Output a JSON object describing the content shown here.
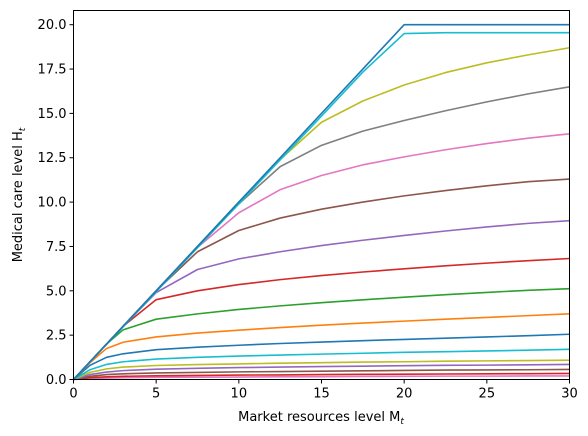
{
  "chart_data": {
    "type": "line",
    "title": "",
    "xlabel": "Market resources level M",
    "xlabel_sub": "t",
    "ylabel": "Medical care level H",
    "ylabel_sub": "t",
    "xlim": [
      0,
      30
    ],
    "ylim": [
      0,
      20.8
    ],
    "x_ticks": [
      0,
      5,
      10,
      15,
      20,
      25,
      30
    ],
    "x_tick_labels": [
      "0",
      "5",
      "10",
      "15",
      "20",
      "25",
      "30"
    ],
    "y_ticks": [
      0,
      2.5,
      5,
      7.5,
      10,
      12.5,
      15,
      17.5,
      20
    ],
    "y_tick_labels": [
      "0.0",
      "2.5",
      "5.0",
      "7.5",
      "10.0",
      "12.5",
      "15.0",
      "17.5",
      "20.0"
    ],
    "grid": false,
    "legend": "none",
    "x": [
      0,
      1,
      2,
      3,
      5,
      7.5,
      10,
      12.5,
      15,
      17.5,
      20,
      22.5,
      25,
      27.5,
      30
    ],
    "series": [
      {
        "color": "#e377c2",
        "values": [
          0,
          0.05,
          0.08,
          0.1,
          0.12,
          0.13,
          0.14,
          0.15,
          0.16,
          0.17,
          0.18,
          0.19,
          0.19,
          0.2,
          0.2
        ]
      },
      {
        "color": "#d62728",
        "values": [
          0,
          0.1,
          0.15,
          0.18,
          0.21,
          0.23,
          0.25,
          0.26,
          0.28,
          0.29,
          0.3,
          0.31,
          0.32,
          0.33,
          0.34
        ]
      },
      {
        "color": "#8c564b",
        "values": [
          0,
          0.18,
          0.28,
          0.32,
          0.37,
          0.4,
          0.43,
          0.45,
          0.47,
          0.49,
          0.51,
          0.53,
          0.54,
          0.55,
          0.57
        ]
      },
      {
        "color": "#9467bd",
        "values": [
          0,
          0.28,
          0.42,
          0.5,
          0.58,
          0.63,
          0.67,
          0.7,
          0.73,
          0.75,
          0.78,
          0.8,
          0.81,
          0.83,
          0.85
        ]
      },
      {
        "color": "#bcbd22",
        "values": [
          0,
          0.4,
          0.6,
          0.7,
          0.79,
          0.84,
          0.88,
          0.92,
          0.95,
          0.98,
          1.0,
          1.03,
          1.05,
          1.07,
          1.09
        ]
      },
      {
        "color": "#17becf",
        "values": [
          0,
          0.55,
          0.85,
          1.0,
          1.15,
          1.25,
          1.32,
          1.38,
          1.43,
          1.48,
          1.53,
          1.57,
          1.61,
          1.65,
          1.7
        ]
      },
      {
        "color": "#1f77b4",
        "values": [
          0,
          0.8,
          1.25,
          1.45,
          1.68,
          1.82,
          1.93,
          2.03,
          2.11,
          2.19,
          2.26,
          2.33,
          2.4,
          2.47,
          2.55
        ]
      },
      {
        "color": "#ff7f0e",
        "values": [
          0,
          0.95,
          1.75,
          2.1,
          2.4,
          2.62,
          2.78,
          2.93,
          3.06,
          3.18,
          3.29,
          3.4,
          3.5,
          3.6,
          3.7
        ]
      },
      {
        "color": "#2ca02c",
        "values": [
          0,
          1.0,
          2.0,
          2.8,
          3.4,
          3.7,
          3.95,
          4.15,
          4.33,
          4.49,
          4.64,
          4.78,
          4.91,
          5.03,
          5.12
        ]
      },
      {
        "color": "#d62728",
        "values": [
          0,
          1.0,
          2.0,
          3.0,
          4.5,
          5.0,
          5.35,
          5.63,
          5.86,
          6.06,
          6.24,
          6.41,
          6.56,
          6.7,
          6.82
        ]
      },
      {
        "color": "#9467bd",
        "values": [
          0,
          1.0,
          2.0,
          3.0,
          4.9,
          6.2,
          6.8,
          7.2,
          7.55,
          7.85,
          8.12,
          8.37,
          8.6,
          8.8,
          8.95
        ]
      },
      {
        "color": "#8c564b",
        "values": [
          0,
          1.0,
          2.0,
          3.0,
          5.0,
          7.2,
          8.4,
          9.1,
          9.6,
          10.0,
          10.35,
          10.65,
          10.92,
          11.15,
          11.3
        ]
      },
      {
        "color": "#e377c2",
        "values": [
          0,
          1.0,
          2.0,
          3.0,
          5.0,
          7.45,
          9.4,
          10.7,
          11.5,
          12.1,
          12.55,
          12.95,
          13.3,
          13.6,
          13.85
        ]
      },
      {
        "color": "#7f7f7f",
        "values": [
          0,
          1.0,
          2.0,
          3.0,
          5.0,
          7.5,
          9.9,
          12.0,
          13.2,
          14.0,
          14.6,
          15.15,
          15.65,
          16.1,
          16.5
        ]
      },
      {
        "color": "#bcbd22",
        "values": [
          0,
          1.0,
          2.0,
          3.0,
          5.0,
          7.5,
          10.0,
          12.4,
          14.5,
          15.7,
          16.6,
          17.3,
          17.85,
          18.3,
          18.7
        ]
      },
      {
        "color": "#17becf",
        "values": [
          0,
          0.99,
          1.98,
          2.97,
          4.95,
          7.43,
          9.9,
          12.38,
          14.85,
          17.33,
          19.5,
          19.55,
          19.55,
          19.55,
          19.55
        ]
      },
      {
        "color": "#1f77b4",
        "values": [
          0,
          1.0,
          2.0,
          3.0,
          5.0,
          7.5,
          10.0,
          12.5,
          15.0,
          17.5,
          20.0,
          20.0,
          20.0,
          20.0,
          20.0
        ]
      }
    ]
  }
}
